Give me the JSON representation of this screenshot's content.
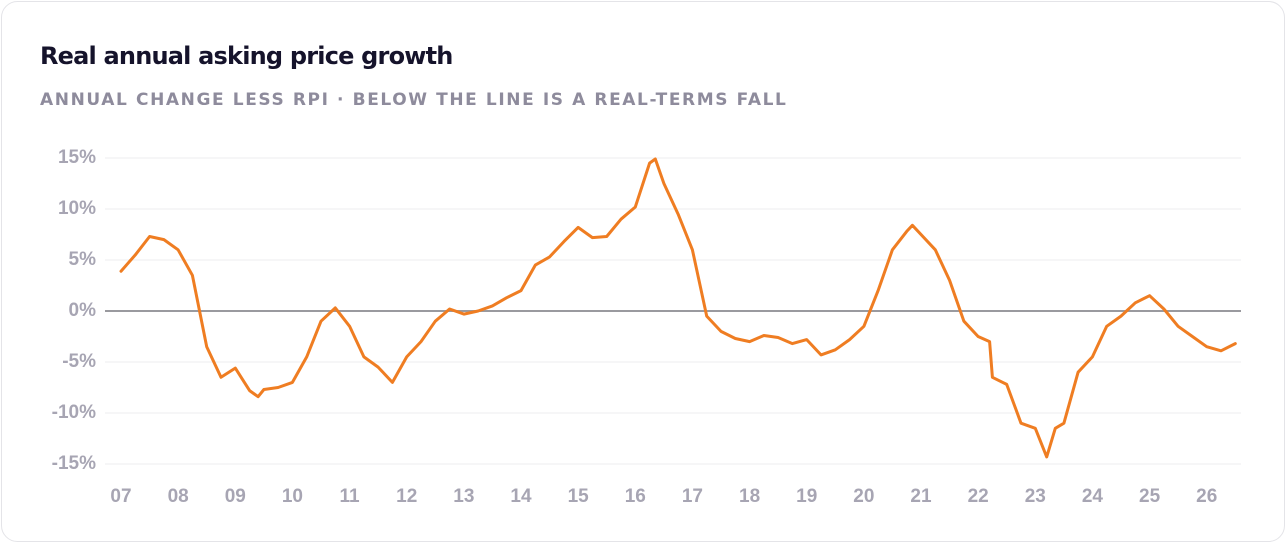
{
  "chart_data": {
    "type": "line",
    "title": "Real annual asking price growth",
    "subtitle": "ANNUAL CHANGE LESS RPI · BELOW THE LINE IS A REAL-TERMS FALL",
    "x": [
      2007,
      2007.25,
      2007.5,
      2007.75,
      2008,
      2008.25,
      2008.5,
      2008.75,
      2009,
      2009.25,
      2009.4,
      2009.5,
      2009.75,
      2010,
      2010.25,
      2010.5,
      2010.75,
      2011,
      2011.25,
      2011.5,
      2011.75,
      2012,
      2012.25,
      2012.5,
      2012.75,
      2013,
      2013.25,
      2013.5,
      2013.75,
      2014,
      2014.25,
      2014.5,
      2014.75,
      2015,
      2015.25,
      2015.5,
      2015.75,
      2016,
      2016.25,
      2016.35,
      2016.5,
      2016.75,
      2017,
      2017.25,
      2017.5,
      2017.75,
      2018,
      2018.25,
      2018.5,
      2018.75,
      2019,
      2019.25,
      2019.5,
      2019.75,
      2020,
      2020.25,
      2020.5,
      2020.75,
      2020.85,
      2021,
      2021.25,
      2021.5,
      2021.75,
      2022,
      2022.2,
      2022.25,
      2022.5,
      2022.75,
      2023,
      2023.2,
      2023.35,
      2023.5,
      2023.75,
      2024,
      2024.25,
      2024.5,
      2024.75,
      2025,
      2025.25,
      2025.5,
      2025.75,
      2026,
      2026.25,
      2026.5
    ],
    "series": [
      {
        "name": "Real annual asking price growth",
        "color": "#ef7d22",
        "values": [
          3.9,
          5.5,
          7.3,
          7.0,
          6.0,
          3.5,
          -3.5,
          -6.5,
          -5.6,
          -7.8,
          -8.4,
          -7.7,
          -7.5,
          -7.0,
          -4.5,
          -1.0,
          0.3,
          -1.5,
          -4.5,
          -5.5,
          -7.0,
          -4.5,
          -3.0,
          -1.0,
          0.2,
          -0.3,
          0.0,
          0.5,
          1.3,
          2.0,
          4.5,
          5.3,
          6.8,
          8.2,
          7.2,
          7.3,
          9.0,
          10.2,
          14.5,
          14.9,
          12.5,
          9.5,
          6.0,
          -0.5,
          -2.0,
          -2.7,
          -3.0,
          -2.4,
          -2.6,
          -3.2,
          -2.8,
          -4.3,
          -3.8,
          -2.8,
          -1.5,
          2.0,
          6.0,
          7.8,
          8.4,
          7.5,
          6.0,
          3.0,
          -1.0,
          -2.5,
          -3.0,
          -6.5,
          -7.2,
          -11.0,
          -11.5,
          -14.3,
          -11.5,
          -11.0,
          -6.0,
          -4.5,
          -1.5,
          -0.5,
          0.8,
          1.5,
          0.2,
          -1.5,
          -2.5,
          -3.5,
          -3.9,
          -3.2
        ]
      }
    ],
    "xlim": [
      2007,
      2026.6
    ],
    "xticks": [
      {
        "value": 2007,
        "label": "07"
      },
      {
        "value": 2008,
        "label": "08"
      },
      {
        "value": 2009,
        "label": "09"
      },
      {
        "value": 2010,
        "label": "10"
      },
      {
        "value": 2011,
        "label": "11"
      },
      {
        "value": 2012,
        "label": "12"
      },
      {
        "value": 2013,
        "label": "13"
      },
      {
        "value": 2014,
        "label": "14"
      },
      {
        "value": 2015,
        "label": "15"
      },
      {
        "value": 2016,
        "label": "16"
      },
      {
        "value": 2017,
        "label": "17"
      },
      {
        "value": 2018,
        "label": "18"
      },
      {
        "value": 2019,
        "label": "19"
      },
      {
        "value": 2020,
        "label": "20"
      },
      {
        "value": 2021,
        "label": "21"
      },
      {
        "value": 2022,
        "label": "22"
      },
      {
        "value": 2023,
        "label": "23"
      },
      {
        "value": 2024,
        "label": "24"
      },
      {
        "value": 2025,
        "label": "25"
      },
      {
        "value": 2026,
        "label": "26"
      }
    ],
    "ylim": [
      -15,
      15
    ],
    "yticks": [
      {
        "value": -15,
        "label": "-15%"
      },
      {
        "value": -10,
        "label": "-10%"
      },
      {
        "value": -5,
        "label": "-5%"
      },
      {
        "value": 0,
        "label": "0%"
      },
      {
        "value": 5,
        "label": "5%"
      },
      {
        "value": 10,
        "label": "10%"
      },
      {
        "value": 15,
        "label": "15%"
      }
    ],
    "grid": true
  }
}
